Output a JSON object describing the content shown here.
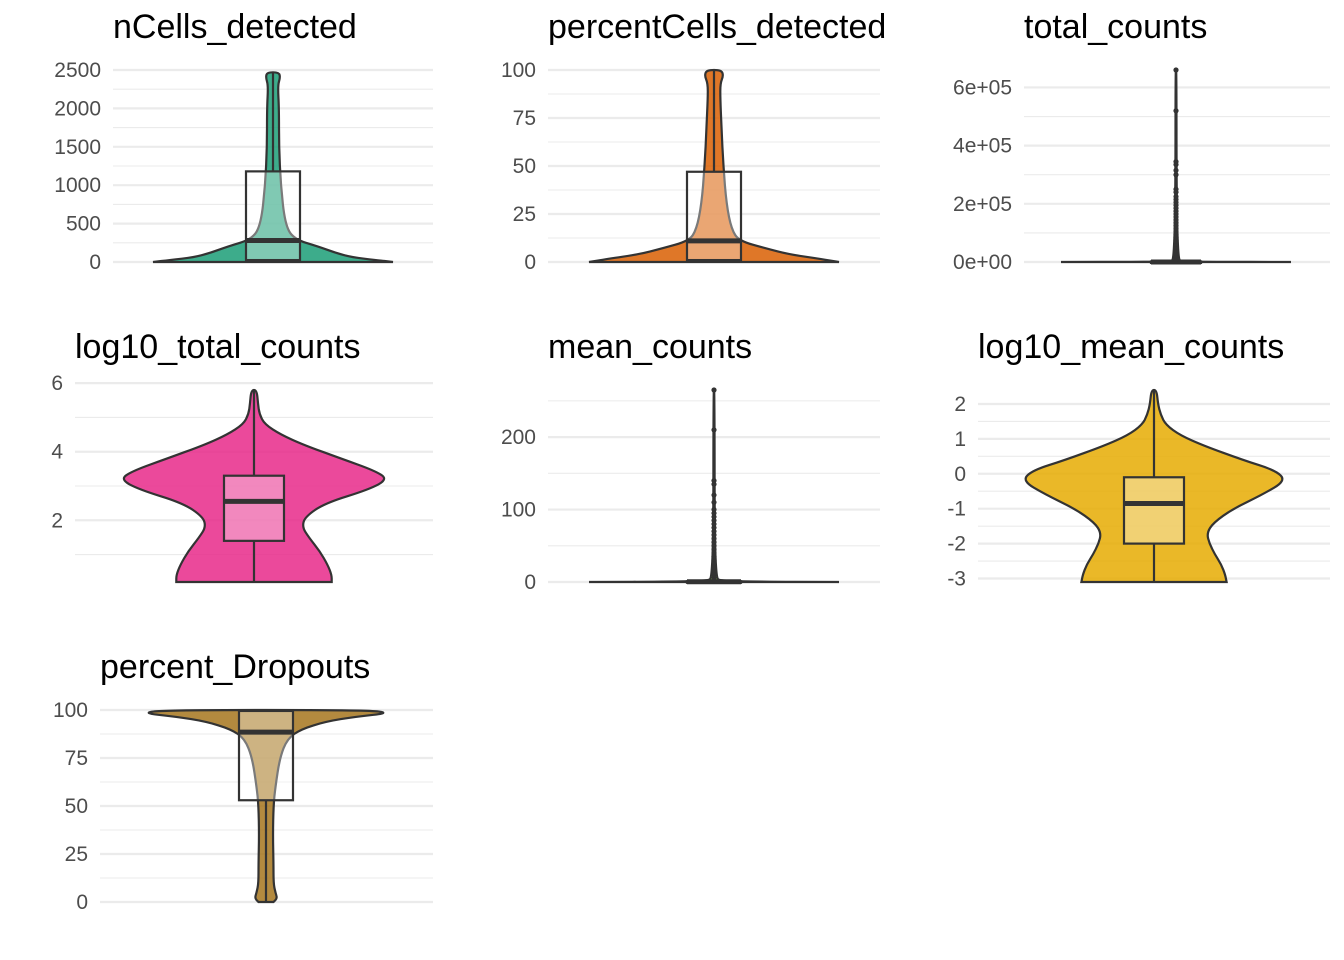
{
  "chart_data": [
    {
      "type": "violin",
      "title": "nCells_detected",
      "color": "#1b9e77",
      "ylim": [
        0,
        2500
      ],
      "yticks": [
        0,
        500,
        1000,
        1500,
        2000,
        2500
      ],
      "tick_labels": [
        "0",
        "500",
        "1000",
        "1500",
        "2000",
        "2500"
      ],
      "density": [
        [
          0,
          1.0
        ],
        [
          25,
          0.86
        ],
        [
          60,
          0.66
        ],
        [
          120,
          0.52
        ],
        [
          200,
          0.38
        ],
        [
          300,
          0.17
        ],
        [
          500,
          0.1
        ],
        [
          1000,
          0.065
        ],
        [
          1500,
          0.05
        ],
        [
          2000,
          0.05
        ],
        [
          2300,
          0.04
        ],
        [
          2400,
          0.06
        ],
        [
          2470,
          0.05
        ]
      ],
      "box": {
        "q1": 25,
        "median": 280,
        "q3": 1180,
        "whisker_low": 0,
        "whisker_high": 2470
      },
      "outliers": []
    },
    {
      "type": "violin",
      "title": "percentCells_detected",
      "color": "#d95f02",
      "ylim": [
        0,
        100
      ],
      "yticks": [
        0,
        25,
        50,
        75,
        100
      ],
      "tick_labels": [
        "0",
        "25",
        "50",
        "75",
        "100"
      ],
      "density": [
        [
          0,
          1.0
        ],
        [
          1.5,
          0.86
        ],
        [
          4,
          0.6
        ],
        [
          7,
          0.42
        ],
        [
          11,
          0.2
        ],
        [
          17,
          0.14
        ],
        [
          30,
          0.1
        ],
        [
          50,
          0.075
        ],
        [
          70,
          0.06
        ],
        [
          85,
          0.05
        ],
        [
          93,
          0.05
        ],
        [
          97,
          0.075
        ],
        [
          100,
          0.06
        ]
      ],
      "box": {
        "q1": 1,
        "median": 11,
        "q3": 47,
        "whisker_low": 0,
        "whisker_high": 100
      },
      "outliers": []
    },
    {
      "type": "violin",
      "title": "total_counts",
      "color": "#7570b3",
      "ylim": [
        0,
        660000
      ],
      "yticks": [
        0,
        200000,
        400000,
        600000
      ],
      "tick_labels": [
        "0e+00",
        "2e+05",
        "4e+05",
        "6e+05"
      ],
      "density": [
        [
          0,
          1.0
        ],
        [
          500,
          0.3
        ],
        [
          2000,
          0.05
        ],
        [
          10000,
          0.02
        ],
        [
          200000,
          0.005
        ],
        [
          660000,
          0.004
        ]
      ],
      "box": {
        "q1": 0,
        "median": 200,
        "q3": 2000,
        "whisker_low": 0,
        "whisker_high": 660000
      },
      "outliers": [
        660000,
        520000,
        345000,
        335000,
        315000,
        300000,
        250000,
        240000,
        225000,
        215000,
        205000,
        195000,
        185000,
        175000,
        165000,
        155000,
        145000,
        135000,
        125000,
        115000,
        105000,
        95000,
        85000,
        75000,
        65000,
        55000,
        45000,
        35000,
        25000,
        15000,
        8000
      ]
    },
    {
      "type": "violin",
      "title": "log10_total_counts",
      "color": "#e7298a",
      "ylim": [
        0.2,
        5.8
      ],
      "yticks": [
        2,
        4,
        6
      ],
      "tick_labels": [
        "2",
        "4",
        "6"
      ],
      "density": [
        [
          0.2,
          0.58
        ],
        [
          0.4,
          0.58
        ],
        [
          0.7,
          0.55
        ],
        [
          1.1,
          0.49
        ],
        [
          1.5,
          0.41
        ],
        [
          1.8,
          0.36
        ],
        [
          2.1,
          0.38
        ],
        [
          2.5,
          0.53
        ],
        [
          2.9,
          0.86
        ],
        [
          3.2,
          1.0
        ],
        [
          3.45,
          0.9
        ],
        [
          3.8,
          0.65
        ],
        [
          4.2,
          0.37
        ],
        [
          4.5,
          0.2
        ],
        [
          4.8,
          0.08
        ],
        [
          5.1,
          0.04
        ],
        [
          5.4,
          0.03
        ],
        [
          5.8,
          0.02
        ]
      ],
      "box": {
        "q1": 1.4,
        "median": 2.55,
        "q3": 3.3,
        "whisker_low": 0.2,
        "whisker_high": 5.8
      },
      "outliers": []
    },
    {
      "type": "violin",
      "title": "mean_counts",
      "color": "#66a61e",
      "ylim": [
        0,
        265
      ],
      "yticks": [
        0,
        100,
        200
      ],
      "tick_labels": [
        "0",
        "100",
        "200"
      ],
      "density": [
        [
          0,
          1.0
        ],
        [
          0.5,
          0.3
        ],
        [
          2,
          0.05
        ],
        [
          5,
          0.02
        ],
        [
          60,
          0.005
        ],
        [
          265,
          0.004
        ]
      ],
      "box": {
        "q1": 0,
        "median": 0.3,
        "q3": 1,
        "whisker_low": 0,
        "whisker_high": 265
      },
      "outliers": [
        265,
        210,
        140,
        135,
        120,
        110,
        100,
        95,
        90,
        85,
        80,
        75,
        70,
        65,
        60,
        55,
        50,
        45,
        40,
        35,
        30,
        25,
        20,
        15,
        10,
        6,
        3
      ]
    },
    {
      "type": "violin",
      "title": "log10_mean_counts",
      "color": "#e6ab02",
      "ylim": [
        -3.1,
        2.4
      ],
      "yticks": [
        -3,
        -2,
        -1,
        0,
        1,
        2
      ],
      "tick_labels": [
        "-3",
        "-2",
        "-1",
        "0",
        "1",
        "2"
      ],
      "density": [
        [
          -3.1,
          0.55
        ],
        [
          -2.9,
          0.54
        ],
        [
          -2.6,
          0.51
        ],
        [
          -2.3,
          0.46
        ],
        [
          -2.0,
          0.42
        ],
        [
          -1.7,
          0.4
        ],
        [
          -1.4,
          0.45
        ],
        [
          -1.0,
          0.6
        ],
        [
          -0.6,
          0.82
        ],
        [
          -0.2,
          1.0
        ],
        [
          0.1,
          0.92
        ],
        [
          0.4,
          0.67
        ],
        [
          0.8,
          0.38
        ],
        [
          1.1,
          0.2
        ],
        [
          1.4,
          0.09
        ],
        [
          1.7,
          0.05
        ],
        [
          2.0,
          0.03
        ],
        [
          2.4,
          0.02
        ]
      ],
      "box": {
        "q1": -2.0,
        "median": -0.85,
        "q3": -0.1,
        "whisker_low": -3.1,
        "whisker_high": 2.4
      },
      "outliers": []
    },
    {
      "type": "violin",
      "title": "percent_Dropouts",
      "color": "#a6761d",
      "ylim": [
        0,
        100
      ],
      "yticks": [
        0,
        25,
        50,
        75,
        100
      ],
      "tick_labels": [
        "0",
        "25",
        "50",
        "75",
        "100"
      ],
      "density": [
        [
          0,
          0.06
        ],
        [
          2,
          0.09
        ],
        [
          5,
          0.075
        ],
        [
          10,
          0.06
        ],
        [
          20,
          0.06
        ],
        [
          35,
          0.055
        ],
        [
          50,
          0.06
        ],
        [
          60,
          0.075
        ],
        [
          75,
          0.11
        ],
        [
          85,
          0.17
        ],
        [
          90,
          0.28
        ],
        [
          94,
          0.48
        ],
        [
          96.5,
          0.72
        ],
        [
          98.5,
          1.0
        ],
        [
          100,
          0.78
        ]
      ],
      "box": {
        "q1": 53,
        "median": 88.5,
        "q3": 99.5,
        "whisker_low": 0,
        "whisker_high": 100
      },
      "outliers": []
    }
  ]
}
